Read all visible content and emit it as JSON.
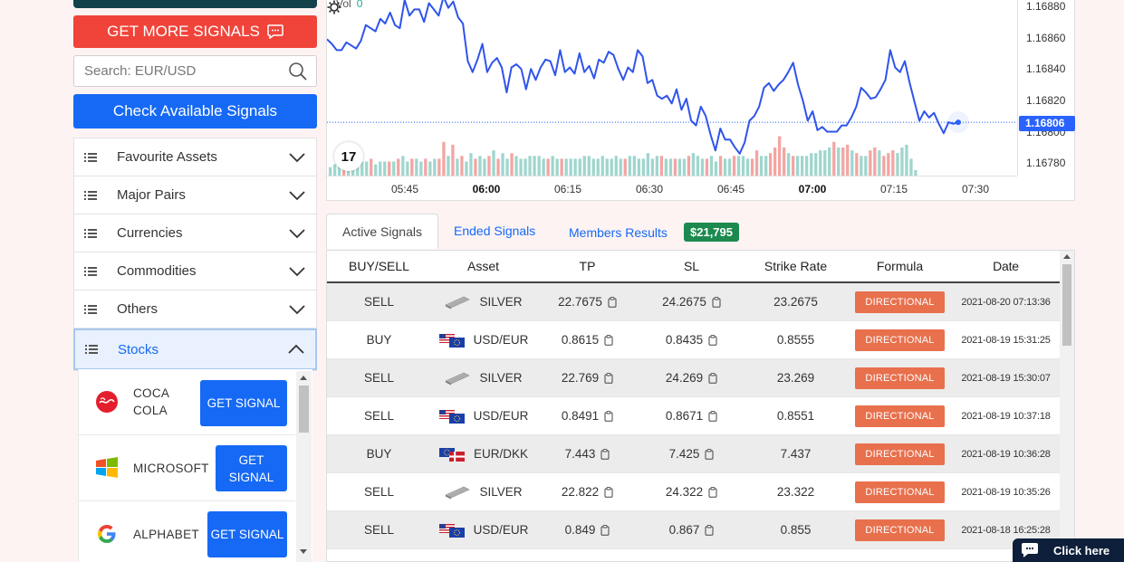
{
  "sidebar": {
    "more_signals_label": "GET MORE SIGNALS",
    "search_placeholder": "Search: EUR/USD",
    "check_label": "Check Available Signals",
    "categories": [
      {
        "label": "Favourite Assets"
      },
      {
        "label": "Major Pairs"
      },
      {
        "label": "Currencies"
      },
      {
        "label": "Commodities"
      },
      {
        "label": "Others"
      },
      {
        "label": "Stocks"
      }
    ],
    "stocks": [
      {
        "name": "COCA COLA",
        "button": "GET SIGNAL",
        "icon": "coca-cola-logo"
      },
      {
        "name": "MICROSOFT",
        "button": "GET SIGNAL",
        "icon": "microsoft-logo"
      },
      {
        "name": "ALPHABET",
        "button": "GET SIGNAL",
        "icon": "google-logo"
      }
    ]
  },
  "chart": {
    "vol_label": "Vol",
    "vol_value": "0",
    "current_price": "1.16806",
    "logo_text": "17",
    "colors": {
      "line": "#2f54eb",
      "up": "#26a69a",
      "down": "#ef5350",
      "price_tag": "#2962ff"
    }
  },
  "chart_data": {
    "type": "line",
    "x_ticks": [
      "05:45",
      "06:00",
      "06:15",
      "06:30",
      "06:45",
      "07:00",
      "07:15",
      "07:30"
    ],
    "y_ticks": [
      "1.16880",
      "1.16860",
      "1.16840",
      "1.16820",
      "1.16800",
      "1.16780"
    ],
    "ylim": [
      1.16772,
      1.16884
    ],
    "current_price": 1.16806,
    "price": [
      1.16859,
      1.16856,
      1.16852,
      1.16852,
      1.16857,
      1.16855,
      1.16853,
      1.16858,
      1.16868,
      1.16866,
      1.16864,
      1.16872,
      1.16869,
      1.16876,
      1.16868,
      1.16866,
      1.16884,
      1.16874,
      1.16878,
      1.16878,
      1.1687,
      1.16882,
      1.16878,
      1.16874,
      1.16886,
      1.16879,
      1.16883,
      1.16873,
      1.16869,
      1.16845,
      1.16838,
      1.16846,
      1.16856,
      1.16838,
      1.16844,
      1.16847,
      1.16841,
      1.16825,
      1.16841,
      1.16843,
      1.1684,
      1.16827,
      1.1684,
      1.16833,
      1.16841,
      1.16846,
      1.16845,
      1.16836,
      1.16852,
      1.16838,
      1.16841,
      1.16837,
      1.1685,
      1.16838,
      1.16842,
      1.16834,
      1.16846,
      1.16844,
      1.16851,
      1.16849,
      1.1684,
      1.16833,
      1.16841,
      1.16838,
      1.16852,
      1.16848,
      1.16831,
      1.16833,
      1.16823,
      1.16821,
      1.16823,
      1.16818,
      1.16827,
      1.16814,
      1.16821,
      1.16807,
      1.16804,
      1.16816,
      1.1681,
      1.16798,
      1.16788,
      1.16802,
      1.16795,
      1.16795,
      1.1679,
      1.16786,
      1.16793,
      1.16807,
      1.1681,
      1.16816,
      1.16828,
      1.16831,
      1.16826,
      1.1683,
      1.16833,
      1.16838,
      1.16844,
      1.1683,
      1.1682,
      1.16807,
      1.16813,
      1.16801,
      1.16803,
      1.168,
      1.168,
      1.168,
      1.16804,
      1.16804,
      1.16809,
      1.16816,
      1.16828,
      1.16825,
      1.16821,
      1.16822,
      1.16827,
      1.16833,
      1.16852,
      1.16841,
      1.16838,
      1.16845,
      1.16831,
      1.16819,
      1.16807,
      1.16813,
      1.16809,
      1.16812,
      1.16805,
      1.16799,
      1.16806,
      1.16805,
      1.16806
    ],
    "volume": [
      {
        "v": 3,
        "dir": "up"
      },
      {
        "v": 4,
        "dir": "up"
      },
      {
        "v": 5,
        "dir": "up"
      },
      {
        "v": 5,
        "dir": "down"
      },
      {
        "v": 4,
        "dir": "up"
      },
      {
        "v": 6,
        "dir": "up"
      },
      {
        "v": 5,
        "dir": "up"
      },
      {
        "v": 5,
        "dir": "up"
      },
      {
        "v": 5,
        "dir": "up"
      },
      {
        "v": 6,
        "dir": "down"
      },
      {
        "v": 4,
        "dir": "up"
      },
      {
        "v": 5,
        "dir": "up"
      },
      {
        "v": 5,
        "dir": "up"
      },
      {
        "v": 5,
        "dir": "down"
      },
      {
        "v": 5,
        "dir": "up"
      },
      {
        "v": 6,
        "dir": "down"
      },
      {
        "v": 7,
        "dir": "up"
      },
      {
        "v": 5,
        "dir": "up"
      },
      {
        "v": 6,
        "dir": "down"
      },
      {
        "v": 6,
        "dir": "up"
      },
      {
        "v": 5,
        "dir": "up"
      },
      {
        "v": 6,
        "dir": "down"
      },
      {
        "v": 5,
        "dir": "up"
      },
      {
        "v": 6,
        "dir": "up"
      },
      {
        "v": 6,
        "dir": "down"
      },
      {
        "v": 12,
        "dir": "down"
      },
      {
        "v": 7,
        "dir": "up"
      },
      {
        "v": 11,
        "dir": "down"
      },
      {
        "v": 6,
        "dir": "up"
      },
      {
        "v": 7,
        "dir": "down"
      },
      {
        "v": 5,
        "dir": "up"
      },
      {
        "v": 8,
        "dir": "up"
      },
      {
        "v": 6,
        "dir": "down"
      },
      {
        "v": 7,
        "dir": "up"
      },
      {
        "v": 6,
        "dir": "up"
      },
      {
        "v": 7,
        "dir": "down"
      },
      {
        "v": 9,
        "dir": "up"
      },
      {
        "v": 6,
        "dir": "down"
      },
      {
        "v": 8,
        "dir": "up"
      },
      {
        "v": 6,
        "dir": "up"
      },
      {
        "v": 8,
        "dir": "down"
      },
      {
        "v": 7,
        "dir": "up"
      },
      {
        "v": 6,
        "dir": "up"
      },
      {
        "v": 6,
        "dir": "up"
      },
      {
        "v": 7,
        "dir": "up"
      },
      {
        "v": 7,
        "dir": "up"
      },
      {
        "v": 7,
        "dir": "up"
      },
      {
        "v": 6,
        "dir": "up"
      },
      {
        "v": 6,
        "dir": "down"
      },
      {
        "v": 7,
        "dir": "up"
      },
      {
        "v": 6,
        "dir": "up"
      },
      {
        "v": 6,
        "dir": "down"
      },
      {
        "v": 6,
        "dir": "up"
      },
      {
        "v": 6,
        "dir": "up"
      },
      {
        "v": 6,
        "dir": "up"
      },
      {
        "v": 6,
        "dir": "up"
      },
      {
        "v": 7,
        "dir": "up"
      },
      {
        "v": 7,
        "dir": "up"
      },
      {
        "v": 6,
        "dir": "up"
      },
      {
        "v": 6,
        "dir": "up"
      },
      {
        "v": 7,
        "dir": "up"
      },
      {
        "v": 6,
        "dir": "up"
      },
      {
        "v": 6,
        "dir": "up"
      },
      {
        "v": 7,
        "dir": "up"
      },
      {
        "v": 6,
        "dir": "up"
      },
      {
        "v": 6,
        "dir": "down"
      },
      {
        "v": 7,
        "dir": "up"
      },
      {
        "v": 7,
        "dir": "up"
      },
      {
        "v": 6,
        "dir": "up"
      },
      {
        "v": 6,
        "dir": "up"
      },
      {
        "v": 8,
        "dir": "up"
      },
      {
        "v": 6,
        "dir": "up"
      },
      {
        "v": 7,
        "dir": "up"
      },
      {
        "v": 7,
        "dir": "down"
      },
      {
        "v": 6,
        "dir": "up"
      },
      {
        "v": 6,
        "dir": "up"
      },
      {
        "v": 6,
        "dir": "down"
      },
      {
        "v": 6,
        "dir": "up"
      },
      {
        "v": 6,
        "dir": "up"
      },
      {
        "v": 7,
        "dir": "down"
      },
      {
        "v": 8,
        "dir": "up"
      },
      {
        "v": 7,
        "dir": "up"
      },
      {
        "v": 6,
        "dir": "up"
      },
      {
        "v": 6,
        "dir": "down"
      },
      {
        "v": 7,
        "dir": "up"
      },
      {
        "v": 5,
        "dir": "up"
      },
      {
        "v": 7,
        "dir": "down"
      },
      {
        "v": 6,
        "dir": "up"
      },
      {
        "v": 6,
        "dir": "up"
      },
      {
        "v": 7,
        "dir": "down"
      },
      {
        "v": 7,
        "dir": "up"
      },
      {
        "v": 7,
        "dir": "up"
      },
      {
        "v": 6,
        "dir": "up"
      },
      {
        "v": 6,
        "dir": "down"
      },
      {
        "v": 9,
        "dir": "down"
      },
      {
        "v": 7,
        "dir": "up"
      },
      {
        "v": 7,
        "dir": "up"
      },
      {
        "v": 8,
        "dir": "down"
      },
      {
        "v": 10,
        "dir": "down"
      },
      {
        "v": 14,
        "dir": "down"
      },
      {
        "v": 10,
        "dir": "down"
      },
      {
        "v": 8,
        "dir": "up"
      },
      {
        "v": 7,
        "dir": "down"
      },
      {
        "v": 7,
        "dir": "up"
      },
      {
        "v": 7,
        "dir": "up"
      },
      {
        "v": 7,
        "dir": "up"
      },
      {
        "v": 8,
        "dir": "up"
      },
      {
        "v": 8,
        "dir": "up"
      },
      {
        "v": 9,
        "dir": "up"
      },
      {
        "v": 9,
        "dir": "up"
      },
      {
        "v": 10,
        "dir": "up"
      },
      {
        "v": 12,
        "dir": "down"
      },
      {
        "v": 10,
        "dir": "up"
      },
      {
        "v": 10,
        "dir": "down"
      },
      {
        "v": 11,
        "dir": "down"
      },
      {
        "v": 9,
        "dir": "up"
      },
      {
        "v": 8,
        "dir": "down"
      },
      {
        "v": 7,
        "dir": "up"
      },
      {
        "v": 7,
        "dir": "up"
      },
      {
        "v": 9,
        "dir": "down"
      },
      {
        "v": 10,
        "dir": "down"
      },
      {
        "v": 9,
        "dir": "up"
      },
      {
        "v": 7,
        "dir": "down"
      },
      {
        "v": 8,
        "dir": "down"
      },
      {
        "v": 9,
        "dir": "down"
      },
      {
        "v": 8,
        "dir": "up"
      },
      {
        "v": 10,
        "dir": "up"
      },
      {
        "v": 11,
        "dir": "up"
      },
      {
        "v": 6,
        "dir": "up"
      },
      {
        "v": 2,
        "dir": "up"
      }
    ]
  },
  "tabs": {
    "active": "Active Signals",
    "ended": "Ended Signals",
    "members": "Members Results",
    "members_badge": "$21,795"
  },
  "table": {
    "headers": [
      "BUY/SELL",
      "Asset",
      "TP",
      "SL",
      "Strike Rate",
      "Formula",
      "Date"
    ],
    "rows": [
      {
        "side": "SELL",
        "asset": "SILVER",
        "asset_icon": "silver-bar",
        "tp": "22.7675",
        "sl": "24.2675",
        "strike": "23.2675",
        "formula": "DIRECTIONAL",
        "date": "2021-08-20 07:13:36"
      },
      {
        "side": "BUY",
        "asset": "USD/EUR",
        "asset_icon": "usd-eur-flags",
        "tp": "0.8615",
        "sl": "0.8435",
        "strike": "0.8555",
        "formula": "DIRECTIONAL",
        "date": "2021-08-19 15:31:25"
      },
      {
        "side": "SELL",
        "asset": "SILVER",
        "asset_icon": "silver-bar",
        "tp": "22.769",
        "sl": "24.269",
        "strike": "23.269",
        "formula": "DIRECTIONAL",
        "date": "2021-08-19 15:30:07"
      },
      {
        "side": "SELL",
        "asset": "USD/EUR",
        "asset_icon": "usd-eur-flags",
        "tp": "0.8491",
        "sl": "0.8671",
        "strike": "0.8551",
        "formula": "DIRECTIONAL",
        "date": "2021-08-19 10:37:18"
      },
      {
        "side": "BUY",
        "asset": "EUR/DKK",
        "asset_icon": "eur-dkk-flags",
        "tp": "7.443",
        "sl": "7.425",
        "strike": "7.437",
        "formula": "DIRECTIONAL",
        "date": "2021-08-19 10:36:28"
      },
      {
        "side": "SELL",
        "asset": "SILVER",
        "asset_icon": "silver-bar",
        "tp": "22.822",
        "sl": "24.322",
        "strike": "23.322",
        "formula": "DIRECTIONAL",
        "date": "2021-08-19 10:35:26"
      },
      {
        "side": "SELL",
        "asset": "USD/EUR",
        "asset_icon": "usd-eur-flags",
        "tp": "0.849",
        "sl": "0.867",
        "strike": "0.855",
        "formula": "DIRECTIONAL",
        "date": "2021-08-18 16:25:28"
      }
    ]
  },
  "chat": {
    "label": "Click here"
  }
}
